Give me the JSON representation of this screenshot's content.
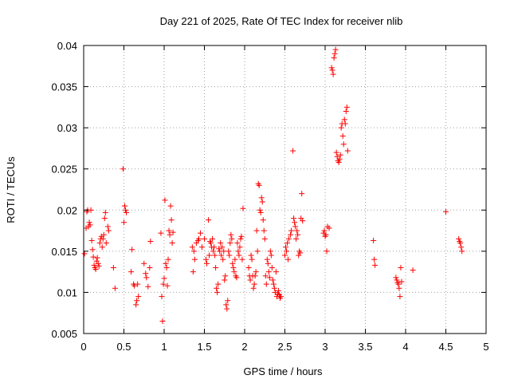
{
  "chart_data": {
    "type": "scatter",
    "title": "Day 221 of 2025, Rate Of TEC Index for receiver nlib",
    "xlabel": "GPS time / hours",
    "ylabel": "ROTI / TECUs",
    "xlim": [
      0,
      5
    ],
    "ylim": [
      0.005,
      0.04
    ],
    "x_ticks": [
      "0",
      "0.5",
      "1",
      "1.5",
      "2",
      "2.5",
      "3",
      "3.5",
      "4",
      "4.5",
      "5"
    ],
    "y_ticks": [
      "0.005",
      "0.01",
      "0.015",
      "0.02",
      "0.025",
      "0.03",
      "0.035",
      "0.04"
    ],
    "grid": true,
    "marker": "+",
    "color": "#ff0000",
    "series": [
      {
        "points": [
          [
            0.01,
            0.0147
          ],
          [
            0.03,
            0.0178
          ],
          [
            0.04,
            0.0198
          ],
          [
            0.05,
            0.02
          ],
          [
            0.06,
            0.018
          ],
          [
            0.07,
            0.0185
          ],
          [
            0.08,
            0.0182
          ],
          [
            0.09,
            0.02
          ],
          [
            0.1,
            0.0163
          ],
          [
            0.11,
            0.0152
          ],
          [
            0.12,
            0.0143
          ],
          [
            0.13,
            0.0133
          ],
          [
            0.14,
            0.013
          ],
          [
            0.15,
            0.0128
          ],
          [
            0.16,
            0.0138
          ],
          [
            0.17,
            0.0142
          ],
          [
            0.18,
            0.0135
          ],
          [
            0.19,
            0.0132
          ],
          [
            0.2,
            0.016
          ],
          [
            0.21,
            0.0165
          ],
          [
            0.22,
            0.0168
          ],
          [
            0.23,
            0.0155
          ],
          [
            0.24,
            0.0165
          ],
          [
            0.25,
            0.017
          ],
          [
            0.26,
            0.019
          ],
          [
            0.27,
            0.0197
          ],
          [
            0.28,
            0.016
          ],
          [
            0.3,
            0.018
          ],
          [
            0.31,
            0.0175
          ],
          [
            0.37,
            0.013
          ],
          [
            0.39,
            0.0105
          ],
          [
            0.49,
            0.025
          ],
          [
            0.5,
            0.0185
          ],
          [
            0.51,
            0.0205
          ],
          [
            0.52,
            0.02
          ],
          [
            0.53,
            0.0197
          ],
          [
            0.59,
            0.0125
          ],
          [
            0.6,
            0.0152
          ],
          [
            0.62,
            0.011
          ],
          [
            0.63,
            0.0108
          ],
          [
            0.65,
            0.0085
          ],
          [
            0.66,
            0.009
          ],
          [
            0.67,
            0.011
          ],
          [
            0.68,
            0.0095
          ],
          [
            0.75,
            0.0135
          ],
          [
            0.77,
            0.0123
          ],
          [
            0.78,
            0.0118
          ],
          [
            0.8,
            0.0107
          ],
          [
            0.82,
            0.013
          ],
          [
            0.83,
            0.0162
          ],
          [
            0.96,
            0.0172
          ],
          [
            0.97,
            0.0095
          ],
          [
            0.98,
            0.0065
          ],
          [
            0.99,
            0.011
          ],
          [
            1.0,
            0.0117
          ],
          [
            1.01,
            0.0212
          ],
          [
            1.02,
            0.0135
          ],
          [
            1.03,
            0.013
          ],
          [
            1.04,
            0.0108
          ],
          [
            1.05,
            0.014
          ],
          [
            1.06,
            0.0175
          ],
          [
            1.07,
            0.017
          ],
          [
            1.08,
            0.0205
          ],
          [
            1.09,
            0.0188
          ],
          [
            1.1,
            0.016
          ],
          [
            1.11,
            0.0173
          ],
          [
            1.35,
            0.0155
          ],
          [
            1.36,
            0.0125
          ],
          [
            1.37,
            0.015
          ],
          [
            1.38,
            0.014
          ],
          [
            1.4,
            0.016
          ],
          [
            1.42,
            0.0163
          ],
          [
            1.43,
            0.0165
          ],
          [
            1.45,
            0.0172
          ],
          [
            1.47,
            0.0155
          ],
          [
            1.5,
            0.0165
          ],
          [
            1.52,
            0.014
          ],
          [
            1.53,
            0.0135
          ],
          [
            1.55,
            0.0188
          ],
          [
            1.56,
            0.0145
          ],
          [
            1.57,
            0.0162
          ],
          [
            1.58,
            0.016
          ],
          [
            1.59,
            0.0155
          ],
          [
            1.6,
            0.0165
          ],
          [
            1.61,
            0.015
          ],
          [
            1.62,
            0.0155
          ],
          [
            1.63,
            0.0145
          ],
          [
            1.64,
            0.013
          ],
          [
            1.65,
            0.0105
          ],
          [
            1.66,
            0.01
          ],
          [
            1.67,
            0.011
          ],
          [
            1.68,
            0.0153
          ],
          [
            1.69,
            0.015
          ],
          [
            1.7,
            0.016
          ],
          [
            1.71,
            0.0145
          ],
          [
            1.72,
            0.0155
          ],
          [
            1.73,
            0.014
          ],
          [
            1.74,
            0.015
          ],
          [
            1.75,
            0.0115
          ],
          [
            1.76,
            0.012
          ],
          [
            1.77,
            0.0085
          ],
          [
            1.78,
            0.008
          ],
          [
            1.79,
            0.009
          ],
          [
            1.8,
            0.015
          ],
          [
            1.81,
            0.0145
          ],
          [
            1.82,
            0.016
          ],
          [
            1.83,
            0.017
          ],
          [
            1.84,
            0.0165
          ],
          [
            1.85,
            0.0135
          ],
          [
            1.86,
            0.013
          ],
          [
            1.87,
            0.0125
          ],
          [
            1.88,
            0.014
          ],
          [
            1.89,
            0.012
          ],
          [
            1.9,
            0.0118
          ],
          [
            1.91,
            0.016
          ],
          [
            1.92,
            0.015
          ],
          [
            1.93,
            0.0145
          ],
          [
            1.94,
            0.0155
          ],
          [
            1.95,
            0.0165
          ],
          [
            1.96,
            0.0168
          ],
          [
            1.97,
            0.014
          ],
          [
            1.98,
            0.0202
          ],
          [
            2.05,
            0.013
          ],
          [
            2.06,
            0.012
          ],
          [
            2.07,
            0.0115
          ],
          [
            2.08,
            0.0145
          ],
          [
            2.09,
            0.014
          ],
          [
            2.1,
            0.012
          ],
          [
            2.11,
            0.0105
          ],
          [
            2.12,
            0.011
          ],
          [
            2.13,
            0.012
          ],
          [
            2.14,
            0.0125
          ],
          [
            2.15,
            0.0175
          ],
          [
            2.16,
            0.015
          ],
          [
            2.17,
            0.0232
          ],
          [
            2.18,
            0.023
          ],
          [
            2.19,
            0.02
          ],
          [
            2.2,
            0.0197
          ],
          [
            2.21,
            0.0215
          ],
          [
            2.22,
            0.021
          ],
          [
            2.23,
            0.0188
          ],
          [
            2.24,
            0.0175
          ],
          [
            2.25,
            0.0165
          ],
          [
            2.26,
            0.012
          ],
          [
            2.27,
            0.011
          ],
          [
            2.28,
            0.014
          ],
          [
            2.29,
            0.0135
          ],
          [
            2.3,
            0.0125
          ],
          [
            2.31,
            0.0118
          ],
          [
            2.32,
            0.015
          ],
          [
            2.33,
            0.0145
          ],
          [
            2.34,
            0.013
          ],
          [
            2.35,
            0.0115
          ],
          [
            2.36,
            0.011
          ],
          [
            2.37,
            0.0105
          ],
          [
            2.38,
            0.01
          ],
          [
            2.39,
            0.0125
          ],
          [
            2.4,
            0.0095
          ],
          [
            2.41,
            0.0098
          ],
          [
            2.42,
            0.0102
          ],
          [
            2.43,
            0.0097
          ],
          [
            2.44,
            0.0093
          ],
          [
            2.45,
            0.0095
          ],
          [
            2.5,
            0.0145
          ],
          [
            2.51,
            0.0155
          ],
          [
            2.52,
            0.015
          ],
          [
            2.53,
            0.016
          ],
          [
            2.54,
            0.014
          ],
          [
            2.55,
            0.0165
          ],
          [
            2.57,
            0.017
          ],
          [
            2.58,
            0.0175
          ],
          [
            2.6,
            0.0272
          ],
          [
            2.61,
            0.019
          ],
          [
            2.62,
            0.0185
          ],
          [
            2.63,
            0.018
          ],
          [
            2.64,
            0.0165
          ],
          [
            2.65,
            0.0175
          ],
          [
            2.66,
            0.017
          ],
          [
            2.67,
            0.0145
          ],
          [
            2.68,
            0.015
          ],
          [
            2.69,
            0.0148
          ],
          [
            2.7,
            0.019
          ],
          [
            2.71,
            0.022
          ],
          [
            2.72,
            0.0187
          ],
          [
            2.98,
            0.0172
          ],
          [
            2.99,
            0.0175
          ],
          [
            3.0,
            0.0168
          ],
          [
            3.01,
            0.017
          ],
          [
            3.02,
            0.015
          ],
          [
            3.03,
            0.018
          ],
          [
            3.05,
            0.0178
          ],
          [
            3.08,
            0.0373
          ],
          [
            3.09,
            0.037
          ],
          [
            3.1,
            0.0365
          ],
          [
            3.11,
            0.0385
          ],
          [
            3.12,
            0.039
          ],
          [
            3.13,
            0.0395
          ],
          [
            3.14,
            0.027
          ],
          [
            3.15,
            0.0265
          ],
          [
            3.16,
            0.026
          ],
          [
            3.17,
            0.0258
          ],
          [
            3.18,
            0.0262
          ],
          [
            3.19,
            0.0267
          ],
          [
            3.2,
            0.03
          ],
          [
            3.21,
            0.0305
          ],
          [
            3.22,
            0.029
          ],
          [
            3.23,
            0.028
          ],
          [
            3.24,
            0.031
          ],
          [
            3.25,
            0.0305
          ],
          [
            3.26,
            0.032
          ],
          [
            3.27,
            0.0325
          ],
          [
            3.28,
            0.0272
          ],
          [
            3.6,
            0.0163
          ],
          [
            3.61,
            0.014
          ],
          [
            3.62,
            0.0133
          ],
          [
            3.88,
            0.0118
          ],
          [
            3.89,
            0.0115
          ],
          [
            3.9,
            0.0112
          ],
          [
            3.91,
            0.011
          ],
          [
            3.92,
            0.0105
          ],
          [
            3.93,
            0.0095
          ],
          [
            3.94,
            0.013
          ],
          [
            3.95,
            0.0113
          ],
          [
            4.09,
            0.0127
          ],
          [
            4.5,
            0.0198
          ],
          [
            4.66,
            0.0165
          ],
          [
            4.67,
            0.0162
          ],
          [
            4.68,
            0.016
          ],
          [
            4.69,
            0.0155
          ],
          [
            4.7,
            0.015
          ]
        ]
      }
    ]
  }
}
